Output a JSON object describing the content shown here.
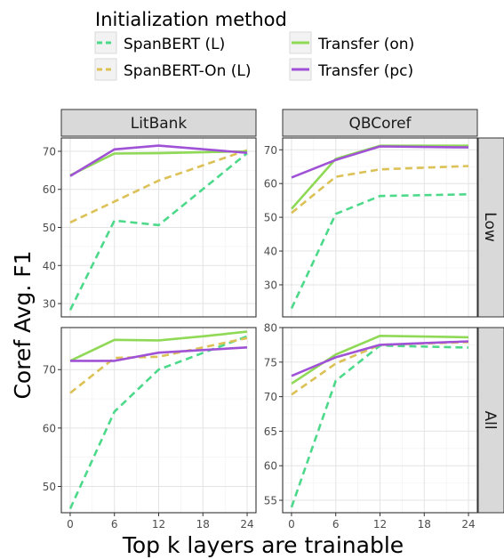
{
  "legend": {
    "title": "Initialization method",
    "items": [
      {
        "label": "SpanBERT (L)",
        "color": "#4dd98a",
        "dash": true
      },
      {
        "label": "SpanBERT-On (L)",
        "color": "#dcc156",
        "dash": true
      },
      {
        "label": "Transfer (on)",
        "color": "#8fd957",
        "dash": false
      },
      {
        "label": "Transfer (pc)",
        "color": "#a052d6",
        "dash": false
      }
    ]
  },
  "chart_data": {
    "type": "line",
    "xlabel": "Top k layers are trainable",
    "ylabel": "Coref Avg. F1",
    "x": [
      0,
      6,
      12,
      18,
      24
    ],
    "x_ticks": [
      "0",
      "6",
      "12",
      "18",
      "24"
    ],
    "columns": [
      "LitBank",
      "QBCoref"
    ],
    "rows": [
      "Low",
      "All"
    ],
    "legend_position": "top",
    "grid": true,
    "panels": [
      {
        "column": "LitBank",
        "row": "Low",
        "ylim": [
          26.5,
          73.5
        ],
        "y_ticks": [
          30,
          40,
          50,
          60,
          70
        ],
        "series": [
          {
            "name": "SpanBERT (L)",
            "x": [
              0,
              6,
              12,
              24
            ],
            "values": [
              28.3,
              51.8,
              50.6,
              69.5
            ]
          },
          {
            "name": "SpanBERT-On (L)",
            "x": [
              0,
              12,
              24
            ],
            "values": [
              51.3,
              62.3,
              70.3
            ]
          },
          {
            "name": "Transfer (on)",
            "x": [
              0,
              6,
              12,
              24
            ],
            "values": [
              63.7,
              69.4,
              69.5,
              70.0
            ]
          },
          {
            "name": "Transfer (pc)",
            "x": [
              0,
              6,
              12,
              24
            ],
            "values": [
              63.5,
              70.5,
              71.5,
              69.6
            ]
          }
        ]
      },
      {
        "column": "QBCoref",
        "row": "Low",
        "ylim": [
          20.5,
          73.5
        ],
        "y_ticks": [
          30,
          40,
          50,
          60,
          70
        ],
        "series": [
          {
            "name": "SpanBERT (L)",
            "x": [
              0,
              6,
              12,
              24
            ],
            "values": [
              23.0,
              51.0,
              56.3,
              56.8
            ]
          },
          {
            "name": "SpanBERT-On (L)",
            "x": [
              0,
              6,
              12,
              24
            ],
            "values": [
              51.3,
              62.0,
              64.2,
              65.2
            ]
          },
          {
            "name": "Transfer (on)",
            "x": [
              0,
              6,
              12,
              24
            ],
            "values": [
              52.5,
              67.3,
              71.2,
              71.2
            ]
          },
          {
            "name": "Transfer (pc)",
            "x": [
              0,
              6,
              12,
              24
            ],
            "values": [
              61.8,
              67.0,
              71.0,
              70.7
            ]
          }
        ]
      },
      {
        "column": "LitBank",
        "row": "All",
        "ylim": [
          45.5,
          77.2
        ],
        "y_ticks": [
          50,
          60,
          70
        ],
        "series": [
          {
            "name": "SpanBERT (L)",
            "x": [
              0,
              6,
              12,
              24
            ],
            "values": [
              46.2,
              62.8,
              70.0,
              75.7
            ]
          },
          {
            "name": "SpanBERT-On (L)",
            "x": [
              0,
              6,
              12,
              24
            ],
            "values": [
              66.0,
              72.0,
              72.2,
              75.4
            ]
          },
          {
            "name": "Transfer (on)",
            "x": [
              0,
              6,
              12,
              18,
              24
            ],
            "values": [
              71.5,
              75.1,
              75.0,
              75.7,
              76.5
            ]
          },
          {
            "name": "Transfer (pc)",
            "x": [
              0,
              6,
              12,
              24
            ],
            "values": [
              71.5,
              71.5,
              72.9,
              73.8
            ]
          }
        ]
      },
      {
        "column": "QBCoref",
        "row": "All",
        "ylim": [
          53.2,
          80.0
        ],
        "y_ticks": [
          55,
          60,
          65,
          70,
          75,
          80
        ],
        "series": [
          {
            "name": "SpanBERT (L)",
            "x": [
              0,
              6,
              12,
              24
            ],
            "values": [
              54.0,
              72.3,
              77.4,
              77.1
            ]
          },
          {
            "name": "SpanBERT-On (L)",
            "x": [
              0,
              6,
              12,
              24
            ],
            "values": [
              70.3,
              74.8,
              77.5,
              77.9
            ]
          },
          {
            "name": "Transfer (on)",
            "x": [
              0,
              6,
              12,
              24
            ],
            "values": [
              71.9,
              76.1,
              78.8,
              78.6
            ]
          },
          {
            "name": "Transfer (pc)",
            "x": [
              0,
              6,
              12,
              24
            ],
            "values": [
              73.0,
              75.7,
              77.5,
              78.0
            ]
          }
        ]
      }
    ]
  }
}
